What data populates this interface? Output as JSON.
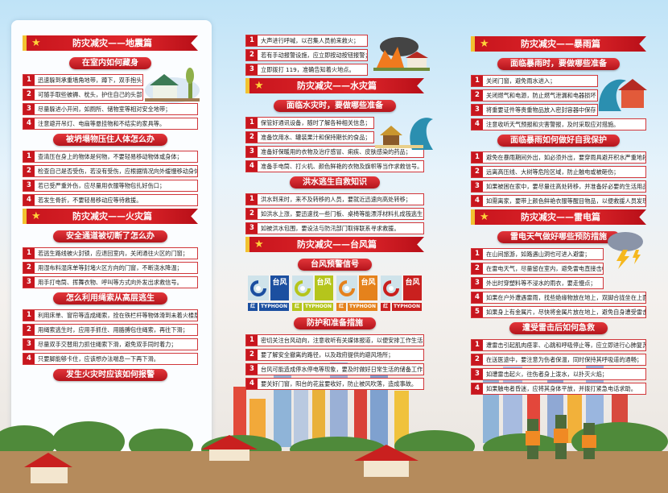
{
  "colors": {
    "accent": "#c8161e",
    "gold": "#f2c230"
  },
  "columns": [
    {
      "sections": [
        {
          "banner": "防灾减灾——地震篇"
        },
        {
          "pill": "在室内如何藏身",
          "items": [
            "迅速躲到承重墙角地带，蹲下，双手抱头；",
            "可随手取些被褥、枕头，护住自己的头部；",
            "尽量躲进小开间，如厕所、储物室等相对安全地带；",
            "注意避开吊灯、电扇等悬挂物和不结实的家具等。"
          ]
        },
        {
          "pill": "被坍塌物压住人体怎么办",
          "items": [
            "查清压在身上的物体是何物，不要轻易移动物体或身体；",
            "检查自己是否受伤，若没有受伤，应根据情况向外缓慢移动身体；",
            "若已受严重外伤，应尽量用衣服等物包扎好伤口；",
            "若发生骨折，不要轻易移动应等待救援。"
          ]
        },
        {
          "banner": "防灾减灾——火灾篇"
        },
        {
          "pill": "安全通道被切断了怎么办",
          "items": [
            "若逃生路线被火封锁，应退回室内，关闭通往火区的门窗；",
            "用湿布料湿床单等封堵火区方向的门窗，不断浇水降温；",
            "用手打电筒、挥舞衣物、呼叫等方式向外发出求救信号。"
          ]
        },
        {
          "pill": "怎么利用绳索从高层逃生",
          "items": [
            "利用床单、窗帘等连成绳索，拴在铁栏杆等物体滑到未着火楼层；",
            "用绳索逃生时，应用手抓住、用胳膊包住绳索，再往下滑；",
            "尽量双手交替用力抓住绳索下滑，避免双手同时着力；",
            "只要脚能够卡住，应该想办法喘息一下再下滑。"
          ]
        },
        {
          "pill": "发生火灾时应该如何报警"
        }
      ]
    },
    {
      "sections": [
        {
          "items": [
            "大声进行呼喊，以召集人员前来救火；",
            "若有手动报警设施，应立即按动按钮报警；",
            "立即拨打 119，准确告知着火地点。"
          ]
        },
        {
          "banner": "防灾减灾——水灾篇"
        },
        {
          "pill": "面临水灾时，要做哪些准备",
          "items": [
            "保管好通讯设备，随时了解各种相关信息；",
            "准备饮用水、罐装果汁和保持期长的食品；",
            "准备好保暖用的衣物及治疗感冒、痢疾、皮肤感染的药品；",
            "准备手电筒、打火机、颜色鲜艳的衣物及旗帜等当作求救信号。"
          ]
        },
        {
          "pill": "洪水逃生自救知识",
          "items": [
            "洪水到来时，来不及转移的人员，要就近迅速向高处转移；",
            "如洪水上涨，要迅速找一些门板、桌椅等能漂浮材料扎成筏逃生；",
            "如被洪水包围，要设法与防汛部门取得联系寻求救援。"
          ]
        },
        {
          "banner": "防灾减灾——台风篇"
        },
        {
          "pill": "台风预警信号",
          "typhoon": [
            {
              "cn": "台风",
              "level": "红",
              "en": "TYPHOON",
              "color": "#1c4fa0"
            },
            {
              "cn": "台风",
              "level": "红",
              "en": "TYPHOON",
              "color": "#b5c51c"
            },
            {
              "cn": "台风",
              "level": "红",
              "en": "TYPHOON",
              "color": "#e5821c"
            },
            {
              "cn": "台风",
              "level": "红",
              "en": "TYPHOON",
              "color": "#c9201f"
            }
          ]
        },
        {
          "pill": "防护和准备措施",
          "items": [
            "密切关注台风动向，注意收听有关媒体报道，以便安排工作生活；",
            "要了解安全撤离的路径，以及政府提供的避风场所；",
            "台风可能造成停水停电等现象，要及时做好日常生活的储备工作；",
            "要关好门窗，阳台的花盆要收好，防止被风吹落，造成事故。"
          ]
        }
      ]
    },
    {
      "sections": [
        {
          "banner": "防灾减灾——暴雨篇"
        },
        {
          "pill": "面临暴雨时，要做哪些准备",
          "items": [
            "关闭门窗，避免雨水进入；",
            "关闭燃气和电源，防止燃气泄漏和电器损坏；",
            "将重要证件等贵重物品放入密封容器中保存；",
            "注意收听天气预报和灾害警报，及时采取应对措施。"
          ]
        },
        {
          "pill": "面临暴雨如何做好自我保护",
          "items": [
            "避免在暴雨期间外出，如必须外出，要穿雨具避开积水严重地段；",
            "远离高压线、大树等危险区域，防止触电或被砸伤；",
            "如果被困在家中，要尽量往高处转移，并准备好必要的生活用品；",
            "如需离家，要带上颜色鲜艳衣服等醒目物品，以便救援人员发现。"
          ]
        },
        {
          "banner": "防灾减灾——雷电篇"
        },
        {
          "pill": "雷电天气做好哪些预防措施",
          "items": [
            "在山间旅游，如路遇山洞也可进入避雷；",
            "在雷电天气，尽量留在室内，避免雷电直接击中；",
            "外出时穿塑料等不浸水的雨衣，要走慢点；",
            "如果在户外遭遇雷雨，找些绝缘物放在地上，双脚合拢坐在上面；",
            "如果身上有金属片，尽快将金属片放在地上，避免自身遭受雷击。"
          ]
        },
        {
          "pill": "遭受雷击后如何急救",
          "items": [
            "遭雷击引起肌肉痉挛、心跳和呼吸停止等，应立即进行心肺复苏术；",
            "在送医途中，要注意为伤者保温，同时保持其呼吸道的通畅；",
            "如遭雷击起火，往伤者身上泼水，以扑灭火焰；",
            "如果触电者昏迷，应将其身体平放，并拨打紧急电话求助。"
          ]
        }
      ]
    }
  ]
}
